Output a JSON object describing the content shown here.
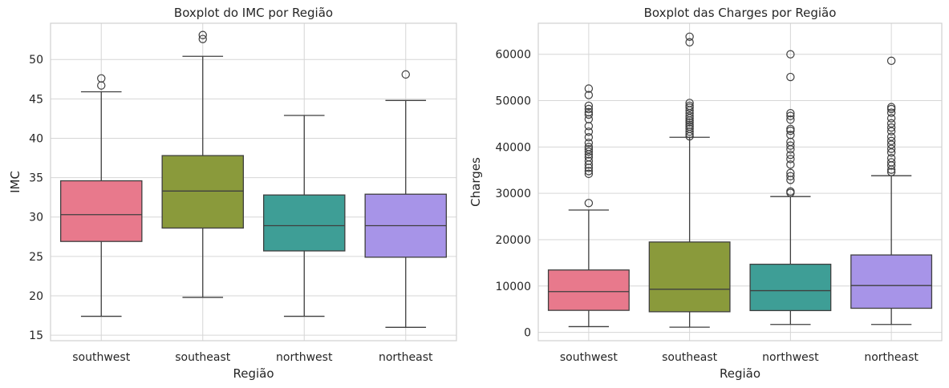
{
  "chart_data": [
    {
      "type": "box",
      "title": "Boxplot do IMC por Região",
      "xlabel": "Região",
      "ylabel": "IMC",
      "ylim": [
        14.3,
        54.6
      ],
      "yticks": [
        15,
        20,
        25,
        30,
        35,
        40,
        45,
        50
      ],
      "grid": "horizontal",
      "categories": [
        "southwest",
        "southeast",
        "northwest",
        "northeast"
      ],
      "colors": [
        "#e8798c",
        "#8a9a3b",
        "#3e9e96",
        "#a794e8"
      ],
      "boxes": [
        {
          "category": "southwest",
          "whisker_low": 17.4,
          "q1": 26.9,
          "median": 30.3,
          "q3": 34.6,
          "whisker_high": 45.9,
          "outliers": [
            46.7,
            47.6
          ]
        },
        {
          "category": "southeast",
          "whisker_low": 19.8,
          "q1": 28.6,
          "median": 33.3,
          "q3": 37.8,
          "whisker_high": 50.4,
          "outliers": [
            52.6,
            53.1
          ]
        },
        {
          "category": "northwest",
          "whisker_low": 17.4,
          "q1": 25.7,
          "median": 28.9,
          "q3": 32.8,
          "whisker_high": 42.9,
          "outliers": []
        },
        {
          "category": "northeast",
          "whisker_low": 16.0,
          "q1": 24.9,
          "median": 28.9,
          "q3": 32.9,
          "whisker_high": 44.8,
          "outliers": [
            48.1
          ]
        }
      ]
    },
    {
      "type": "box",
      "title": "Boxplot das Charges por Região",
      "xlabel": "Região",
      "ylabel": "Charges",
      "ylim": [
        -1800,
        66700
      ],
      "yticks": [
        0,
        10000,
        20000,
        30000,
        40000,
        50000,
        60000
      ],
      "grid": "horizontal",
      "categories": [
        "southwest",
        "southeast",
        "northwest",
        "northeast"
      ],
      "colors": [
        "#e8798c",
        "#8a9a3b",
        "#3e9e96",
        "#a794e8"
      ],
      "boxes": [
        {
          "category": "southwest",
          "whisker_low": 1241,
          "q1": 4750,
          "median": 8800,
          "q3": 13460,
          "whisker_high": 26400,
          "outliers": [
            27900,
            34200,
            34800,
            35500,
            36200,
            37000,
            37800,
            38400,
            39000,
            39500,
            40000,
            40900,
            42100,
            43300,
            44500,
            46000,
            47000,
            47500,
            48200,
            48900,
            51200,
            52600
          ]
        },
        {
          "category": "southeast",
          "whisker_low": 1122,
          "q1": 4450,
          "median": 9300,
          "q3": 19500,
          "whisker_high": 42100,
          "outliers": [
            42300,
            42800,
            43300,
            43900,
            44400,
            44800,
            45300,
            45700,
            46200,
            46700,
            47300,
            47900,
            48500,
            48900,
            49500,
            62600,
            63800
          ]
        },
        {
          "category": "northwest",
          "whisker_low": 1700,
          "q1": 4700,
          "median": 9000,
          "q3": 14700,
          "whisker_high": 29300,
          "outliers": [
            30100,
            30400,
            32900,
            33700,
            34400,
            36200,
            37400,
            38300,
            39500,
            40300,
            41100,
            42600,
            43500,
            43900,
            45900,
            46700,
            47300,
            55100,
            60000
          ]
        },
        {
          "category": "northeast",
          "whisker_low": 1700,
          "q1": 5200,
          "median": 10100,
          "q3": 16700,
          "whisker_high": 33800,
          "outliers": [
            34600,
            35100,
            36000,
            36700,
            37600,
            38800,
            39600,
            40500,
            41300,
            42200,
            43400,
            44200,
            45100,
            46200,
            47400,
            48200,
            48600,
            58600
          ]
        }
      ]
    }
  ]
}
